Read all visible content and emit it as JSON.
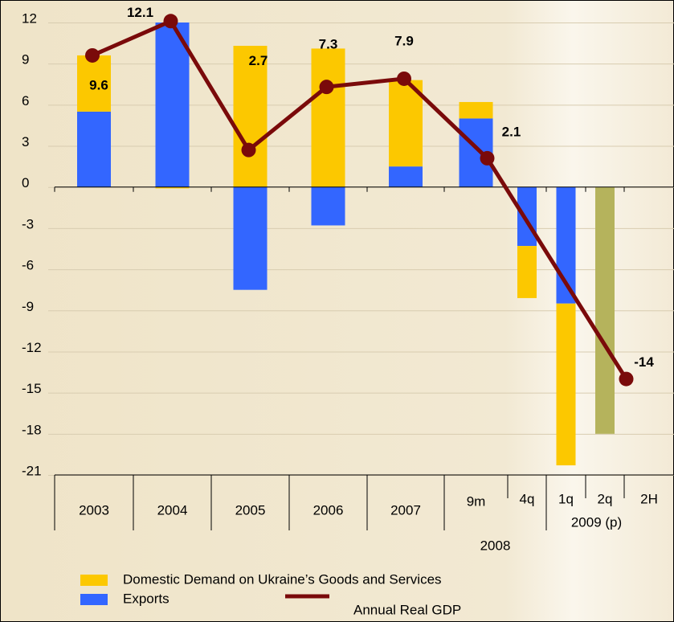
{
  "chart_data": {
    "type": "bar",
    "categories": [
      "2003",
      "2004",
      "2005",
      "2006",
      "2007",
      "9m",
      "4q",
      "1q",
      "2q",
      "2H"
    ],
    "groups": [
      {
        "label": "2008",
        "from": 5,
        "to": 6
      },
      {
        "label": "2009 (p)",
        "from": 7,
        "to": 9
      }
    ],
    "series": [
      {
        "name": "Domestic Demand on Ukraine’s Goods and Services",
        "color": "#fcc800",
        "values": [
          4.1,
          -0.1,
          10.3,
          10.1,
          6.3,
          1.2,
          -3.8,
          -11.8,
          null,
          null
        ]
      },
      {
        "name": "Exports",
        "color": "#3366ff",
        "values": [
          5.5,
          12,
          -7.5,
          -2.8,
          1.5,
          5.0,
          -4.3,
          -8.5,
          null,
          null
        ]
      },
      {
        "color": "#b5b35c",
        "values": [
          null,
          null,
          null,
          null,
          null,
          null,
          null,
          null,
          -18,
          null
        ]
      }
    ],
    "line": {
      "name": "Annual Real GDP",
      "color": "#7a0a0a",
      "values": [
        9.6,
        12.1,
        2.7,
        7.3,
        7.9,
        2.1,
        null,
        null,
        null,
        -14
      ]
    },
    "ylim": [
      -21,
      12
    ],
    "yticks": [
      12,
      9,
      6,
      3,
      0,
      -3,
      -6,
      -9,
      -12,
      -15,
      -18,
      -21
    ],
    "grid": true
  }
}
